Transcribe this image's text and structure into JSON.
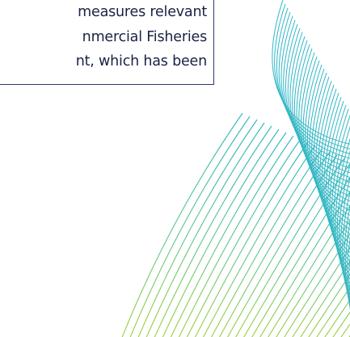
{
  "document": {
    "text_lines": [
      "measures relevant",
      "nmercial Fisheries",
      "nt, which has been"
    ]
  },
  "decoration": {
    "name": "wave-line-pattern",
    "colors": {
      "teal": "#2bb5c9",
      "lime": "#9bd13a",
      "border": "#2a3a6e"
    }
  }
}
